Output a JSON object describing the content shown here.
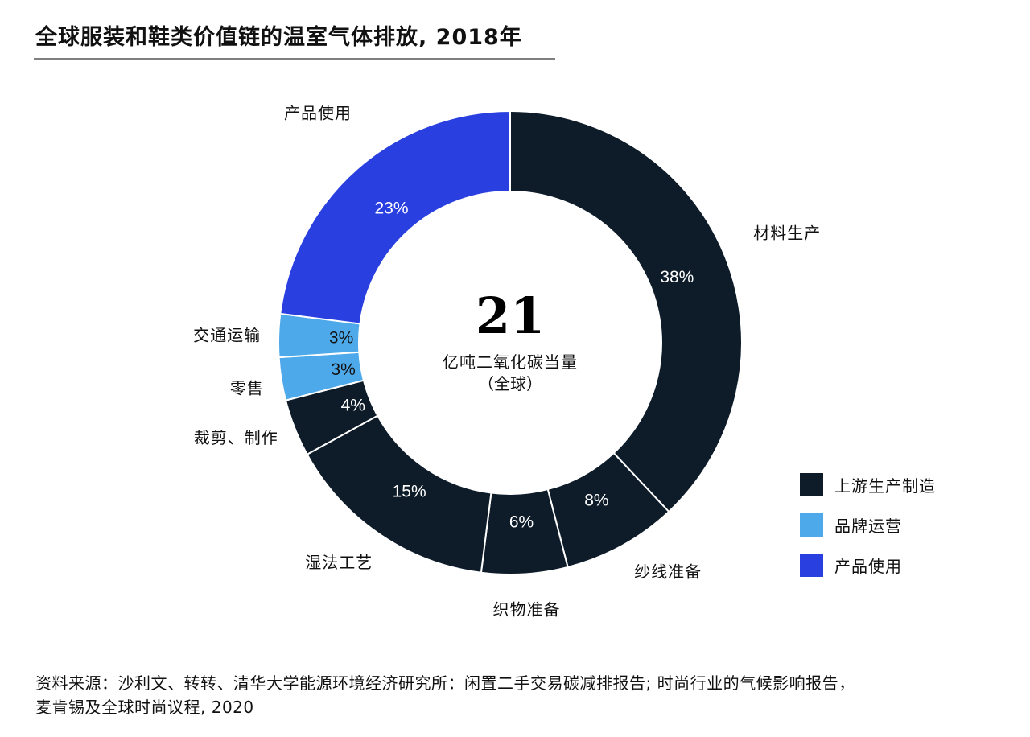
{
  "title": "全球服装和鞋类价值链的温室气体排放, 2018年",
  "center": {
    "value": "21",
    "unit_line1": "亿吨二氧化碳当量",
    "unit_line2": "（全球）"
  },
  "chart_data": {
    "type": "pie",
    "title": "全球服装和鞋类价值链的温室气体排放, 2018年",
    "total": 21,
    "slices": [
      {
        "label": "材料生产",
        "value": 38,
        "value_label": "38%",
        "group": "上游生产制造"
      },
      {
        "label": "纱线准备",
        "value": 8,
        "value_label": "8%",
        "group": "上游生产制造"
      },
      {
        "label": "织物准备",
        "value": 6,
        "value_label": "6%",
        "group": "上游生产制造"
      },
      {
        "label": "湿法工艺",
        "value": 15,
        "value_label": "15%",
        "group": "上游生产制造"
      },
      {
        "label": "裁剪、制作",
        "value": 4,
        "value_label": "4%",
        "group": "上游生产制造"
      },
      {
        "label": "零售",
        "value": 3,
        "value_label": "3%",
        "group": "品牌运营"
      },
      {
        "label": "交通运输",
        "value": 3,
        "value_label": "3%",
        "group": "品牌运营"
      },
      {
        "label": "产品使用",
        "value": 23,
        "value_label": "23%",
        "group": "产品使用"
      }
    ],
    "legend": [
      {
        "name": "上游生产制造",
        "color": "#0e1c2a"
      },
      {
        "name": "品牌运营",
        "color": "#4ea9ea"
      },
      {
        "name": "产品使用",
        "color": "#2a3fdf"
      }
    ],
    "legend_position": "bottom-right"
  },
  "source": {
    "line1": "资料来源：沙利文、转转、清华大学能源环境经济研究所：闲置二手交易碳减排报告; 时尚行业的气候影响报告，",
    "line2": "麦肯锡及全球时尚议程, 2020"
  }
}
